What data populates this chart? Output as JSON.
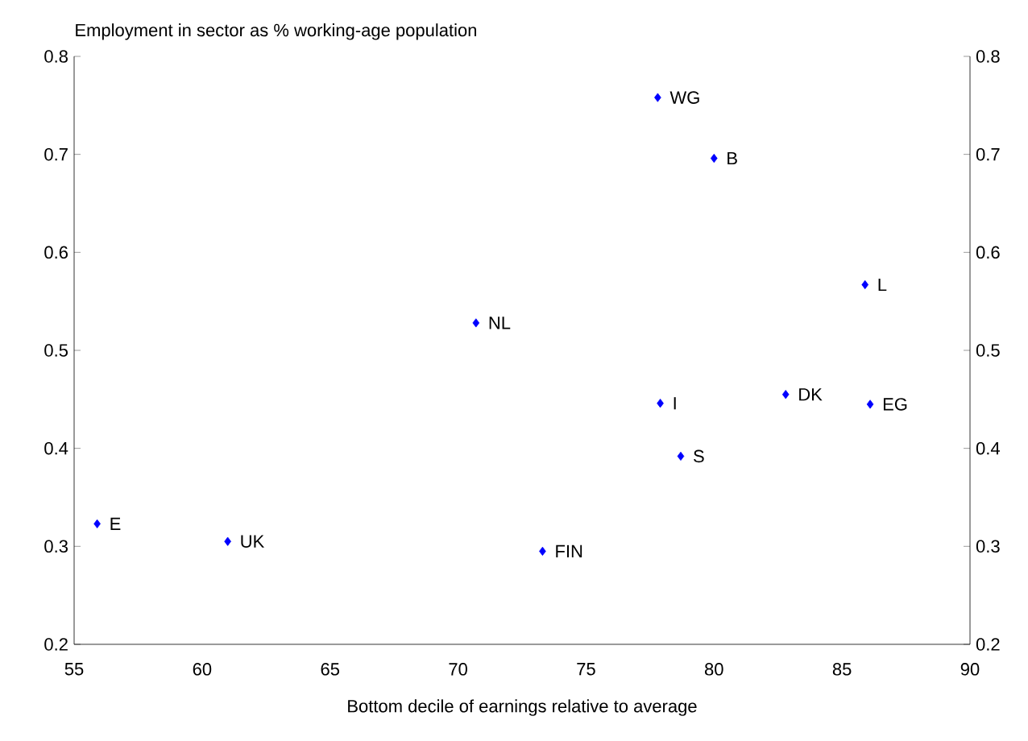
{
  "chart_data": {
    "type": "scatter",
    "xlabel": "Bottom decile of earnings relative to average",
    "title": "Employment in sector as % working-age population",
    "x": [
      55.9,
      61.0,
      70.7,
      73.3,
      77.8,
      80.0,
      77.9,
      78.7,
      82.8,
      85.9,
      86.1
    ],
    "series": [
      {
        "color": "#0000ff",
        "values": [
          0.323,
          0.305,
          0.528,
          0.295,
          0.758,
          0.696,
          0.446,
          0.392,
          0.455,
          0.567,
          0.445
        ]
      }
    ],
    "marker": "diamond",
    "grid": false,
    "xlim": [
      55,
      90
    ],
    "xticks": [
      55,
      60,
      65,
      70,
      75,
      80,
      85,
      90
    ],
    "ylim": [
      0.2,
      0.8
    ],
    "yticks": [
      0.2,
      0.3,
      0.4,
      0.5,
      0.6,
      0.7,
      0.8
    ],
    "y2lim": [
      0.2,
      0.8
    ],
    "y2ticks": [
      0.2,
      0.3,
      0.4,
      0.5,
      0.6,
      0.7,
      0.8
    ],
    "annotations": [
      {
        "text": "E",
        "x": 55.9,
        "y": 0.323
      },
      {
        "text": "UK",
        "x": 61.0,
        "y": 0.305
      },
      {
        "text": "NL",
        "x": 70.7,
        "y": 0.528
      },
      {
        "text": "FIN",
        "x": 73.3,
        "y": 0.295
      },
      {
        "text": "WG",
        "x": 77.8,
        "y": 0.758
      },
      {
        "text": "B",
        "x": 80.0,
        "y": 0.696
      },
      {
        "text": "I",
        "x": 77.9,
        "y": 0.446
      },
      {
        "text": "S",
        "x": 78.7,
        "y": 0.392
      },
      {
        "text": "DK",
        "x": 82.8,
        "y": 0.455
      },
      {
        "text": "L",
        "x": 85.9,
        "y": 0.567
      },
      {
        "text": "EG",
        "x": 86.1,
        "y": 0.445
      }
    ]
  }
}
